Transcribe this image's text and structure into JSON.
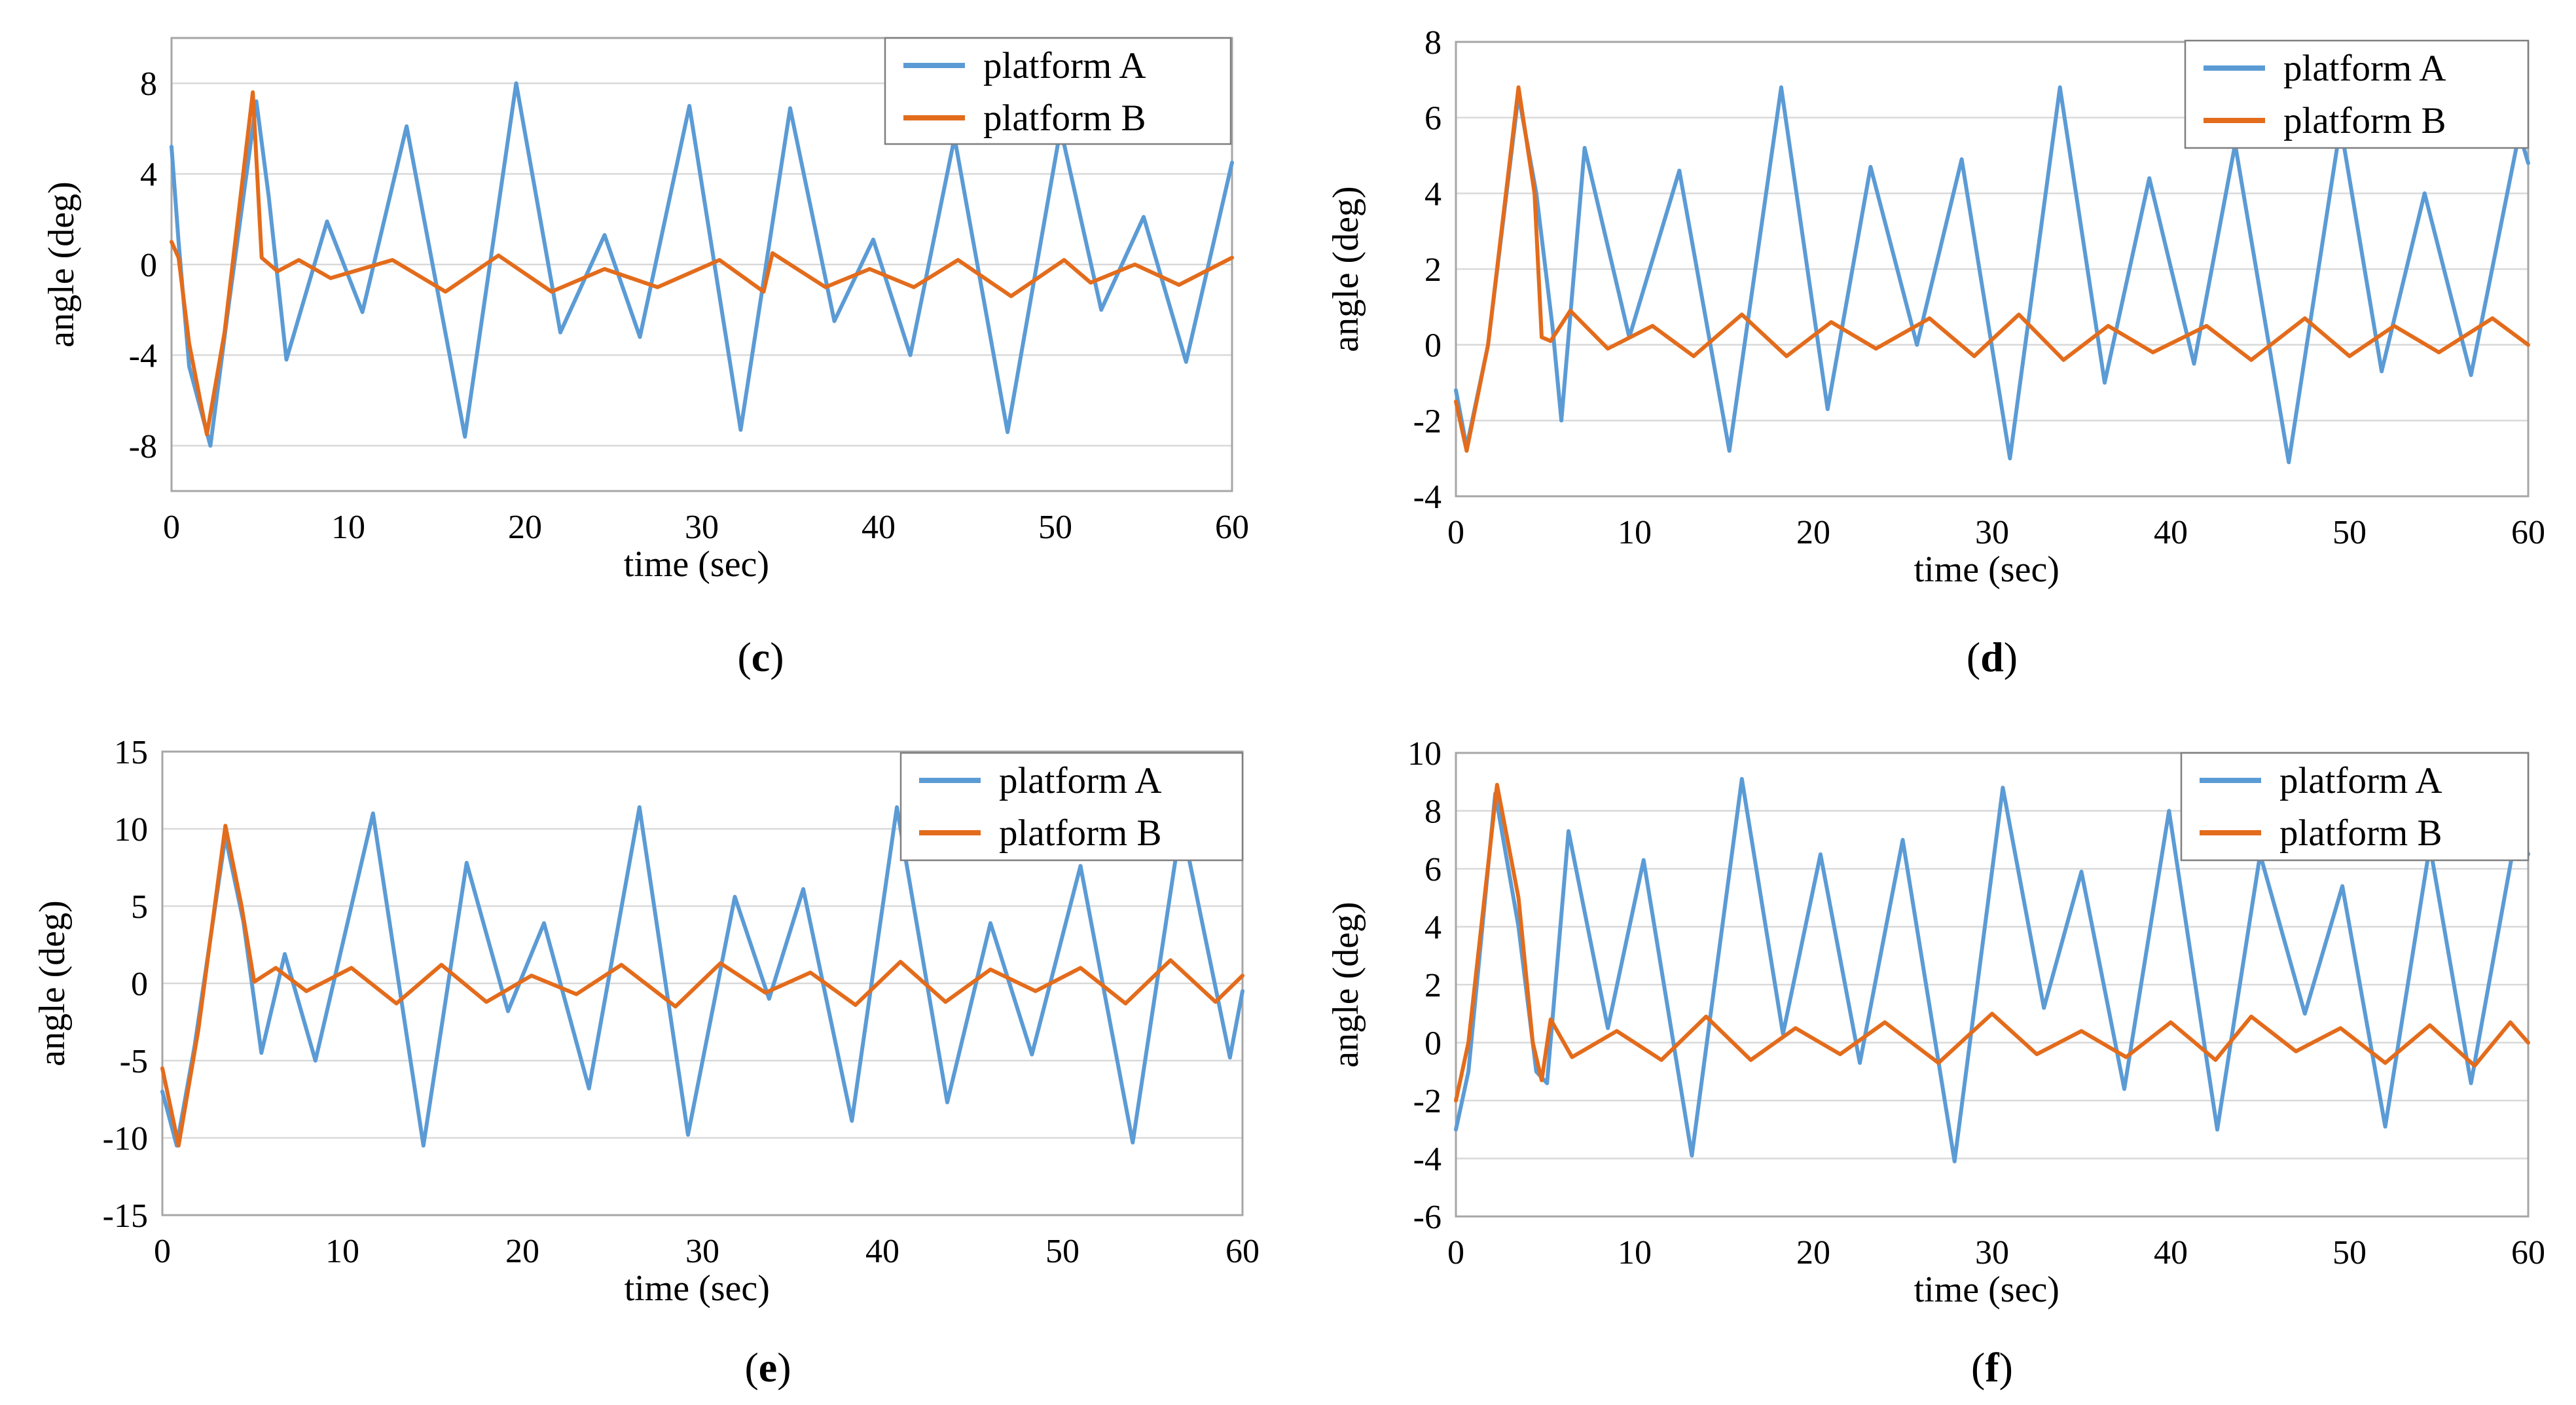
{
  "colors": {
    "platform_a": "#5b9bd5",
    "platform_b": "#e36c1c"
  },
  "chart_data": [
    {
      "id": "c",
      "type": "line",
      "panel_label": "c",
      "title": "",
      "xlabel": "time (sec)",
      "ylabel": "angle (deg)",
      "xlim": [
        0,
        60
      ],
      "ylim": [
        -10,
        10
      ],
      "x_ticks": [
        0,
        10,
        20,
        30,
        40,
        50,
        60
      ],
      "y_ticks": [
        -8,
        -4,
        0,
        4,
        8
      ],
      "legend_position": "top-right",
      "series": [
        {
          "name": "platform A",
          "points": [
            [
              0,
              5.2
            ],
            [
              0.4,
              1.0
            ],
            [
              1.0,
              -4.5
            ],
            [
              2.2,
              -8.0
            ],
            [
              3.2,
              -2.0
            ],
            [
              4.8,
              7.2
            ],
            [
              5.5,
              3.0
            ],
            [
              6.5,
              -4.2
            ],
            [
              8.8,
              1.9
            ],
            [
              10.8,
              -2.1
            ],
            [
              13.3,
              6.1
            ],
            [
              16.6,
              -7.6
            ],
            [
              19.5,
              8.0
            ],
            [
              22.0,
              -3.0
            ],
            [
              24.5,
              1.3
            ],
            [
              26.5,
              -3.2
            ],
            [
              29.3,
              7.0
            ],
            [
              32.2,
              -7.3
            ],
            [
              35.0,
              6.9
            ],
            [
              37.5,
              -2.5
            ],
            [
              39.7,
              1.1
            ],
            [
              41.8,
              -4.0
            ],
            [
              44.3,
              5.6
            ],
            [
              47.3,
              -7.4
            ],
            [
              50.3,
              6.0
            ],
            [
              52.6,
              -2.0
            ],
            [
              55.0,
              2.1
            ],
            [
              57.4,
              -4.3
            ],
            [
              60.0,
              4.5
            ]
          ]
        },
        {
          "name": "platform B",
          "points": [
            [
              0,
              1.0
            ],
            [
              0.4,
              0.3
            ],
            [
              1.0,
              -3.5
            ],
            [
              2.0,
              -7.5
            ],
            [
              3.0,
              -3.0
            ],
            [
              4.6,
              7.6
            ],
            [
              5.1,
              0.3
            ],
            [
              6.0,
              -0.3
            ],
            [
              7.2,
              0.2
            ],
            [
              9.0,
              -0.6
            ],
            [
              12.5,
              0.2
            ],
            [
              15.5,
              -1.2
            ],
            [
              18.5,
              0.4
            ],
            [
              21.5,
              -1.2
            ],
            [
              24.5,
              -0.2
            ],
            [
              27.5,
              -1.0
            ],
            [
              31.0,
              0.2
            ],
            [
              33.5,
              -1.2
            ],
            [
              34.0,
              0.5
            ],
            [
              37.0,
              -1.0
            ],
            [
              39.5,
              -0.2
            ],
            [
              42.0,
              -1.0
            ],
            [
              44.5,
              0.2
            ],
            [
              47.5,
              -1.4
            ],
            [
              50.5,
              0.2
            ],
            [
              52.0,
              -0.8
            ],
            [
              54.5,
              0.0
            ],
            [
              57.0,
              -0.9
            ],
            [
              60.0,
              0.3
            ]
          ]
        }
      ]
    },
    {
      "id": "d",
      "type": "line",
      "panel_label": "d",
      "title": "",
      "xlabel": "time (sec)",
      "ylabel": "angle (deg)",
      "xlim": [
        0,
        60
      ],
      "ylim": [
        -4,
        8
      ],
      "x_ticks": [
        0,
        10,
        20,
        30,
        40,
        50,
        60
      ],
      "y_ticks": [
        -4,
        -2,
        0,
        2,
        4,
        6,
        8
      ],
      "legend_position": "top-right",
      "series": [
        {
          "name": "platform A",
          "points": [
            [
              0,
              -1.2
            ],
            [
              0.6,
              -2.7
            ],
            [
              1.8,
              0.0
            ],
            [
              3.5,
              6.6
            ],
            [
              4.5,
              4.0
            ],
            [
              5.4,
              0.5
            ],
            [
              5.9,
              -2.0
            ],
            [
              7.2,
              5.2
            ],
            [
              9.7,
              0.2
            ],
            [
              12.5,
              4.6
            ],
            [
              15.3,
              -2.8
            ],
            [
              18.2,
              6.8
            ],
            [
              20.8,
              -1.7
            ],
            [
              23.2,
              4.7
            ],
            [
              25.8,
              0.0
            ],
            [
              28.3,
              4.9
            ],
            [
              31.0,
              -3.0
            ],
            [
              33.8,
              6.8
            ],
            [
              36.3,
              -1.0
            ],
            [
              38.8,
              4.4
            ],
            [
              41.3,
              -0.5
            ],
            [
              43.6,
              5.3
            ],
            [
              46.6,
              -3.1
            ],
            [
              49.5,
              5.8
            ],
            [
              51.8,
              -0.7
            ],
            [
              54.2,
              4.0
            ],
            [
              56.8,
              -0.8
            ],
            [
              59.5,
              5.6
            ],
            [
              60.0,
              4.8
            ]
          ]
        },
        {
          "name": "platform B",
          "points": [
            [
              0,
              -1.5
            ],
            [
              0.6,
              -2.8
            ],
            [
              1.8,
              0.0
            ],
            [
              3.5,
              6.8
            ],
            [
              4.4,
              4.0
            ],
            [
              4.8,
              0.2
            ],
            [
              5.3,
              0.1
            ],
            [
              6.4,
              0.9
            ],
            [
              8.5,
              -0.1
            ],
            [
              11.0,
              0.5
            ],
            [
              13.3,
              -0.3
            ],
            [
              16.0,
              0.8
            ],
            [
              18.5,
              -0.3
            ],
            [
              21.0,
              0.6
            ],
            [
              23.5,
              -0.1
            ],
            [
              26.5,
              0.7
            ],
            [
              29.0,
              -0.3
            ],
            [
              31.5,
              0.8
            ],
            [
              34.0,
              -0.4
            ],
            [
              36.5,
              0.5
            ],
            [
              39.0,
              -0.2
            ],
            [
              42.0,
              0.5
            ],
            [
              44.5,
              -0.4
            ],
            [
              47.5,
              0.7
            ],
            [
              50.0,
              -0.3
            ],
            [
              52.5,
              0.5
            ],
            [
              55.0,
              -0.2
            ],
            [
              58.0,
              0.7
            ],
            [
              60.0,
              0.0
            ]
          ]
        }
      ]
    },
    {
      "id": "e",
      "type": "line",
      "panel_label": "e",
      "title": "",
      "xlabel": "time (sec)",
      "ylabel": "angle (deg)",
      "xlim": [
        0,
        60
      ],
      "ylim": [
        -15,
        15
      ],
      "x_ticks": [
        0,
        10,
        20,
        30,
        40,
        50,
        60
      ],
      "y_ticks": [
        -15,
        -10,
        -5,
        0,
        5,
        10,
        15
      ],
      "legend_position": "top-right",
      "series": [
        {
          "name": "platform A",
          "points": [
            [
              0,
              -7.0
            ],
            [
              0.8,
              -10.5
            ],
            [
              1.8,
              -4.0
            ],
            [
              3.5,
              9.5
            ],
            [
              4.5,
              4.0
            ],
            [
              5.5,
              -4.5
            ],
            [
              6.8,
              1.9
            ],
            [
              8.5,
              -5.0
            ],
            [
              11.7,
              11.0
            ],
            [
              14.5,
              -10.5
            ],
            [
              16.9,
              7.8
            ],
            [
              19.2,
              -1.8
            ],
            [
              21.2,
              3.9
            ],
            [
              23.7,
              -6.8
            ],
            [
              26.5,
              11.4
            ],
            [
              29.2,
              -9.8
            ],
            [
              31.8,
              5.6
            ],
            [
              33.7,
              -1.0
            ],
            [
              35.6,
              6.1
            ],
            [
              38.3,
              -8.9
            ],
            [
              40.8,
              11.4
            ],
            [
              43.6,
              -7.7
            ],
            [
              46.0,
              3.9
            ],
            [
              48.3,
              -4.6
            ],
            [
              51.0,
              7.6
            ],
            [
              53.9,
              -10.3
            ],
            [
              56.6,
              10.5
            ],
            [
              59.3,
              -4.8
            ],
            [
              60.0,
              -0.5
            ]
          ]
        },
        {
          "name": "platform B",
          "points": [
            [
              0,
              -5.5
            ],
            [
              0.9,
              -10.5
            ],
            [
              2.0,
              -3.0
            ],
            [
              3.5,
              10.2
            ],
            [
              4.4,
              5.0
            ],
            [
              5.1,
              0.1
            ],
            [
              6.3,
              1.0
            ],
            [
              8.0,
              -0.5
            ],
            [
              10.5,
              1.0
            ],
            [
              13.0,
              -1.3
            ],
            [
              15.5,
              1.2
            ],
            [
              18.0,
              -1.2
            ],
            [
              20.5,
              0.5
            ],
            [
              23.0,
              -0.7
            ],
            [
              25.5,
              1.2
            ],
            [
              28.5,
              -1.5
            ],
            [
              31.0,
              1.3
            ],
            [
              33.5,
              -0.6
            ],
            [
              36.0,
              0.7
            ],
            [
              38.5,
              -1.4
            ],
            [
              41.0,
              1.4
            ],
            [
              43.5,
              -1.2
            ],
            [
              46.0,
              0.9
            ],
            [
              48.5,
              -0.5
            ],
            [
              51.0,
              1.0
            ],
            [
              53.5,
              -1.3
            ],
            [
              56.0,
              1.5
            ],
            [
              58.5,
              -1.2
            ],
            [
              60.0,
              0.5
            ]
          ]
        }
      ]
    },
    {
      "id": "f",
      "type": "line",
      "panel_label": "f",
      "title": "",
      "xlabel": "time (sec)",
      "ylabel": "angle (deg)",
      "xlim": [
        0,
        60
      ],
      "ylim": [
        -6,
        10
      ],
      "x_ticks": [
        0,
        10,
        20,
        30,
        40,
        50,
        60
      ],
      "y_ticks": [
        -6,
        -4,
        -2,
        0,
        2,
        4,
        6,
        8,
        10
      ],
      "legend_position": "top-right",
      "series": [
        {
          "name": "platform A",
          "points": [
            [
              0,
              -3.0
            ],
            [
              0.7,
              -1.0
            ],
            [
              2.2,
              8.6
            ],
            [
              3.5,
              4.0
            ],
            [
              4.5,
              -1.0
            ],
            [
              5.1,
              -1.4
            ],
            [
              6.3,
              7.3
            ],
            [
              8.5,
              0.5
            ],
            [
              10.5,
              6.3
            ],
            [
              13.2,
              -3.9
            ],
            [
              16.0,
              9.1
            ],
            [
              18.3,
              0.3
            ],
            [
              20.4,
              6.5
            ],
            [
              22.6,
              -0.7
            ],
            [
              25.0,
              7.0
            ],
            [
              27.9,
              -4.1
            ],
            [
              30.6,
              8.8
            ],
            [
              32.9,
              1.2
            ],
            [
              35.0,
              5.9
            ],
            [
              37.4,
              -1.6
            ],
            [
              39.9,
              8.0
            ],
            [
              42.6,
              -3.0
            ],
            [
              45.0,
              6.5
            ],
            [
              47.5,
              1.0
            ],
            [
              49.6,
              5.4
            ],
            [
              52.0,
              -2.9
            ],
            [
              54.5,
              6.8
            ],
            [
              56.8,
              -1.4
            ],
            [
              59.4,
              7.5
            ],
            [
              60.0,
              6.5
            ]
          ]
        },
        {
          "name": "platform B",
          "points": [
            [
              0,
              -2.0
            ],
            [
              0.7,
              0.0
            ],
            [
              2.3,
              8.9
            ],
            [
              3.5,
              5.0
            ],
            [
              4.3,
              0.0
            ],
            [
              4.8,
              -1.3
            ],
            [
              5.3,
              0.8
            ],
            [
              6.5,
              -0.5
            ],
            [
              9.0,
              0.4
            ],
            [
              11.5,
              -0.6
            ],
            [
              14.0,
              0.9
            ],
            [
              16.5,
              -0.6
            ],
            [
              19.0,
              0.5
            ],
            [
              21.5,
              -0.4
            ],
            [
              24.0,
              0.7
            ],
            [
              27.0,
              -0.7
            ],
            [
              30.0,
              1.0
            ],
            [
              32.5,
              -0.4
            ],
            [
              35.0,
              0.4
            ],
            [
              37.5,
              -0.5
            ],
            [
              40.0,
              0.7
            ],
            [
              42.5,
              -0.6
            ],
            [
              44.5,
              0.9
            ],
            [
              47.0,
              -0.3
            ],
            [
              49.5,
              0.5
            ],
            [
              52.0,
              -0.7
            ],
            [
              54.5,
              0.6
            ],
            [
              57.0,
              -0.8
            ],
            [
              59.0,
              0.7
            ],
            [
              60.0,
              0.0
            ]
          ]
        }
      ]
    }
  ]
}
